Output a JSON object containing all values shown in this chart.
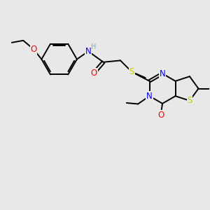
{
  "background_color": "#e8e8e8",
  "bond_color": "#000000",
  "atom_colors": {
    "N": "#0000ff",
    "O": "#ff0000",
    "S": "#cccc00",
    "C": "#000000",
    "H": "#70b8b8"
  },
  "font_size_atom": 8.5,
  "line_width": 1.4,
  "fig_xlim": [
    0,
    10
  ],
  "fig_ylim": [
    0,
    10
  ]
}
